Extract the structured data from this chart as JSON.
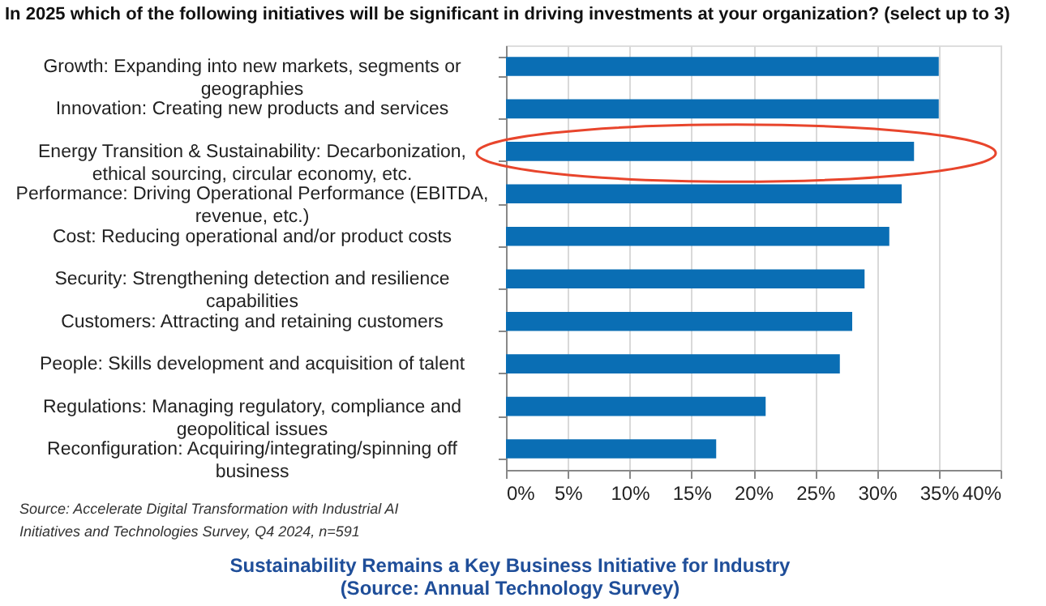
{
  "chart_data": {
    "type": "bar",
    "orientation": "horizontal",
    "title": "In 2025 which of the following initiatives will be significant in driving investments at your organization? (select up to 3)",
    "categories": [
      "Growth: Expanding into new markets, segments or geographies",
      "Innovation: Creating new products and services",
      "Energy Transition & Sustainability: Decarbonization, ethical sourcing, circular economy, etc.",
      "Performance: Driving Operational Performance (EBITDA, revenue, etc.)",
      "Cost: Reducing operational and/or product costs",
      "Security: Strengthening detection and resilience capabilities",
      "Customers: Attracting and retaining customers",
      "People: Skills development and acquisition of talent",
      "Regulations: Managing regulatory, compliance and geopolitical issues",
      "Reconfiguration: Acquiring/integrating/spinning off business"
    ],
    "values": [
      35,
      35,
      33,
      32,
      31,
      29,
      28,
      27,
      21,
      17
    ],
    "color": "#0a6eb4",
    "xlim": [
      0,
      40
    ],
    "xticks": [
      {
        "value": 0,
        "label": "0%"
      },
      {
        "value": 5,
        "label": "5%"
      },
      {
        "value": 10,
        "label": "10%"
      },
      {
        "value": 15,
        "label": "15%"
      },
      {
        "value": 20,
        "label": "20%"
      },
      {
        "value": 25,
        "label": "25%"
      },
      {
        "value": 30,
        "label": "30%"
      },
      {
        "value": 35,
        "label": "35%"
      },
      {
        "value": 40,
        "label": "40%"
      }
    ],
    "grid": "x",
    "annotations": [
      "Source: Accelerate Digital Transformation with Industrial AI Initiatives and Technologies Survey, Q4 2024, n=591",
      "Sustainability Remains a Key Business Initiative for Industry",
      "(Source: Annual Technology Survey)"
    ]
  }
}
